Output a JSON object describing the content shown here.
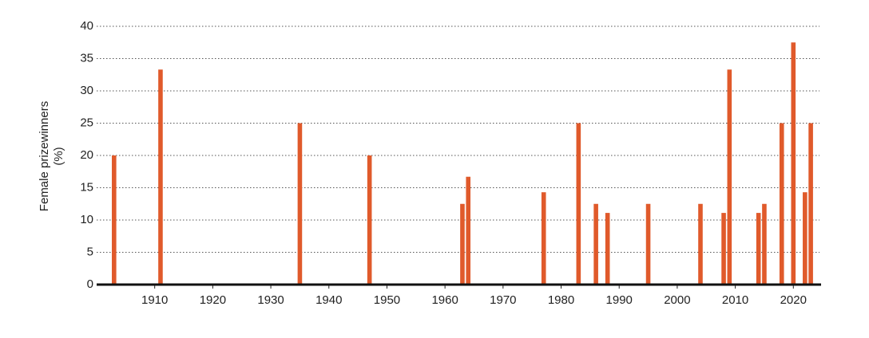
{
  "chart_data": {
    "type": "bar",
    "ylabel": [
      "Female prizewinners",
      "(%)"
    ],
    "x": [
      1903,
      1911,
      1935,
      1947,
      1963,
      1964,
      1977,
      1983,
      1986,
      1988,
      1995,
      2004,
      2008,
      2009,
      2014,
      2015,
      2018,
      2020,
      2022,
      2023
    ],
    "values": [
      20,
      33.3,
      25,
      20,
      12.5,
      16.7,
      14.3,
      25,
      12.5,
      11.1,
      12.5,
      12.5,
      11.1,
      33.3,
      11.1,
      12.5,
      25,
      37.5,
      14.3,
      25
    ],
    "color": "#e05a2b",
    "xlim": [
      1900,
      2024.5
    ],
    "xticks": [
      1910,
      1920,
      1930,
      1940,
      1950,
      1960,
      1970,
      1980,
      1990,
      2000,
      2010,
      2020
    ],
    "ylim": [
      0,
      40
    ],
    "yticks": [
      0,
      5,
      10,
      15,
      20,
      25,
      30,
      35,
      40
    ],
    "grid": true
  }
}
